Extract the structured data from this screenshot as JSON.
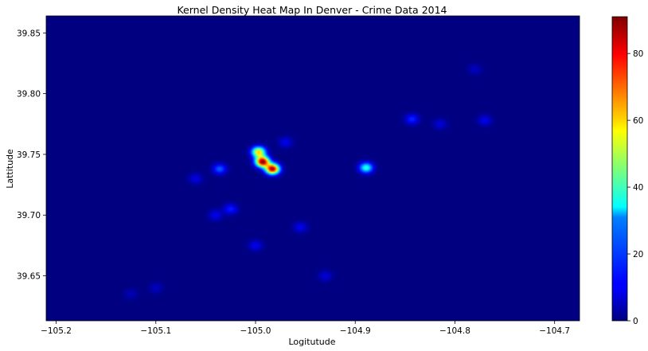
{
  "chart_data": {
    "type": "heatmap",
    "title": "Kernel Density Heat Map In Denver - Crime Data 2014",
    "xlabel": "Logitutude",
    "ylabel": "Lattitude",
    "xlim": [
      -105.21,
      -104.675
    ],
    "ylim": [
      39.613,
      39.864
    ],
    "xticks": [
      -105.2,
      -105.1,
      -105.0,
      -104.9,
      -104.8,
      -104.7
    ],
    "xtick_labels": [
      "−105.2",
      "−105.1",
      "−105.0",
      "−104.9",
      "−104.8",
      "−104.7"
    ],
    "yticks": [
      39.65,
      39.7,
      39.75,
      39.8,
      39.85
    ],
    "ytick_labels": [
      "39.65",
      "39.70",
      "39.75",
      "39.80",
      "39.85"
    ],
    "colormap": "jet",
    "colorbar": {
      "range": [
        0,
        91
      ],
      "ticks": [
        0,
        20,
        40,
        60,
        80
      ],
      "tick_labels": [
        "0",
        "20",
        "40",
        "60",
        "80"
      ]
    },
    "grid": false,
    "hotspots": [
      {
        "lon": -104.993,
        "lat": 39.744,
        "density": 90
      },
      {
        "lon": -104.983,
        "lat": 39.738,
        "density": 88
      },
      {
        "lon": -104.997,
        "lat": 39.752,
        "density": 60
      },
      {
        "lon": -104.889,
        "lat": 39.739,
        "density": 38
      },
      {
        "lon": -105.036,
        "lat": 39.738,
        "density": 20
      },
      {
        "lon": -104.843,
        "lat": 39.779,
        "density": 15
      },
      {
        "lon": -104.815,
        "lat": 39.775,
        "density": 8
      },
      {
        "lon": -104.77,
        "lat": 39.778,
        "density": 10
      },
      {
        "lon": -105.025,
        "lat": 39.705,
        "density": 14
      },
      {
        "lon": -105.04,
        "lat": 39.7,
        "density": 10
      },
      {
        "lon": -104.955,
        "lat": 39.69,
        "density": 10
      },
      {
        "lon": -105.0,
        "lat": 39.675,
        "density": 10
      },
      {
        "lon": -104.97,
        "lat": 39.76,
        "density": 10
      },
      {
        "lon": -105.06,
        "lat": 39.73,
        "density": 9
      },
      {
        "lon": -104.93,
        "lat": 39.65,
        "density": 8
      },
      {
        "lon": -105.1,
        "lat": 39.64,
        "density": 6
      },
      {
        "lon": -105.125,
        "lat": 39.635,
        "density": 5
      },
      {
        "lon": -104.78,
        "lat": 39.82,
        "density": 6
      }
    ]
  }
}
